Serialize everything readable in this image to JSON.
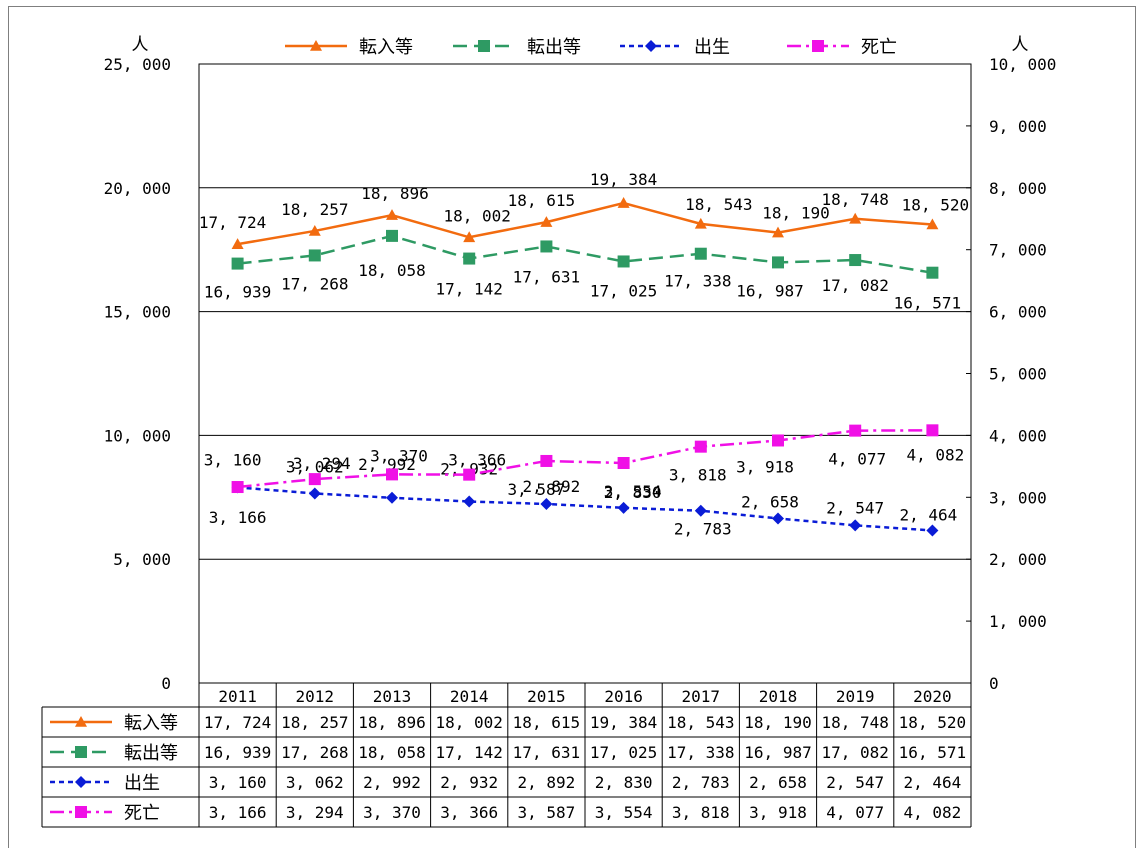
{
  "chart_data": {
    "type": "line",
    "categories": [
      "2011",
      "2012",
      "2013",
      "2014",
      "2015",
      "2016",
      "2017",
      "2018",
      "2019",
      "2020"
    ],
    "y_left": {
      "unit": "人",
      "min": 0,
      "max": 25000,
      "ticks": [
        "0",
        "5, 000",
        "10, 000",
        "15, 000",
        "20, 000",
        "25, 000"
      ]
    },
    "y_right": {
      "unit": "人",
      "min": 0,
      "max": 10000,
      "ticks": [
        "0",
        "1, 000",
        "2, 000",
        "3, 000",
        "4, 000",
        "5, 000",
        "6, 000",
        "7, 000",
        "8, 000",
        "9, 000",
        "10, 000"
      ]
    },
    "grid": true,
    "legend_position": "top",
    "series": [
      {
        "name": "転入等",
        "axis": "left",
        "color": "#F26B0F",
        "marker": "triangle",
        "dash": "solid",
        "values": [
          17724,
          18257,
          18896,
          18002,
          18615,
          19384,
          18543,
          18190,
          18748,
          18520
        ],
        "labels": [
          "17, 724",
          "18, 257",
          "18, 896",
          "18, 002",
          "18, 615",
          "19, 384",
          "18, 543",
          "18, 190",
          "18, 748",
          "18, 520"
        ]
      },
      {
        "name": "転出等",
        "axis": "left",
        "color": "#2E9A63",
        "marker": "square",
        "dash": "dashed",
        "values": [
          16939,
          17268,
          18058,
          17142,
          17631,
          17025,
          17338,
          16987,
          17082,
          16571
        ],
        "labels": [
          "16, 939",
          "17, 268",
          "18, 058",
          "17, 142",
          "17, 631",
          "17, 025",
          "17, 338",
          "16, 987",
          "17, 082",
          "16, 571"
        ]
      },
      {
        "name": "出生",
        "axis": "right",
        "color": "#0A1CD6",
        "marker": "diamond",
        "dash": "dotted",
        "values": [
          3160,
          3062,
          2992,
          2932,
          2892,
          2830,
          2783,
          2658,
          2547,
          2464
        ],
        "labels": [
          "3, 160",
          "3, 062",
          "2, 992",
          "2, 932",
          "2, 892",
          "2, 830",
          "2, 783",
          "2, 658",
          "2, 547",
          "2, 464"
        ]
      },
      {
        "name": "死亡",
        "axis": "right",
        "color": "#F010E6",
        "marker": "square",
        "dash": "dashdot",
        "values": [
          3166,
          3294,
          3370,
          3366,
          3587,
          3554,
          3818,
          3918,
          4077,
          4082
        ],
        "labels": [
          "3, 166",
          "3, 294",
          "3, 370",
          "3, 366",
          "3, 587",
          "3, 554",
          "3, 818",
          "3, 918",
          "4, 077",
          "4, 082"
        ]
      }
    ]
  }
}
